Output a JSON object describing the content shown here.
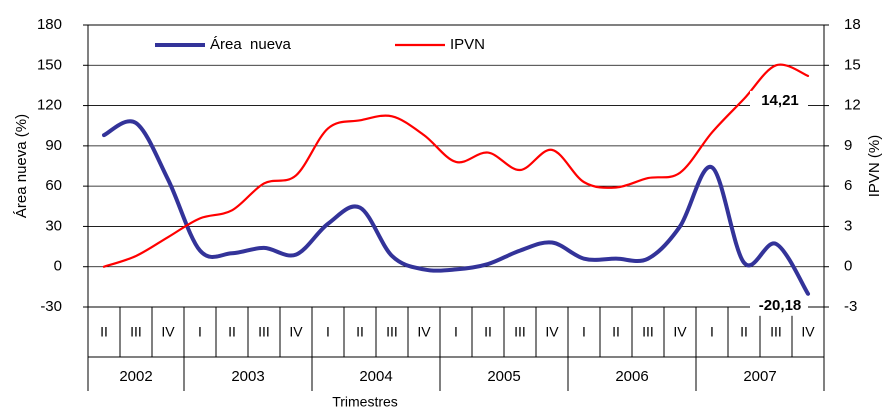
{
  "chart_data": {
    "type": "line",
    "categories": [
      "II",
      "III",
      "IV",
      "I",
      "II",
      "III",
      "IV",
      "I",
      "II",
      "III",
      "IV",
      "I",
      "II",
      "III",
      "IV",
      "I",
      "II",
      "III",
      "IV",
      "I",
      "II",
      "III",
      "IV"
    ],
    "groups": [
      {
        "label": "2002",
        "span": 3
      },
      {
        "label": "2003",
        "span": 4
      },
      {
        "label": "2004",
        "span": 4
      },
      {
        "label": "2005",
        "span": 4
      },
      {
        "label": "2006",
        "span": 4
      },
      {
        "label": "2007",
        "span": 4
      }
    ],
    "xlabel": "Trimestres",
    "ylabel": "Área nueva  (%)",
    "y2label": "IPVN  (%)",
    "ylim": [
      -30,
      180
    ],
    "yticks": [
      -30,
      0,
      30,
      60,
      90,
      120,
      150,
      180
    ],
    "y2lim": [
      -3,
      18
    ],
    "y2ticks": [
      -3,
      0,
      3,
      6,
      9,
      12,
      15,
      18
    ],
    "grid": true,
    "legend": "top",
    "series": [
      {
        "name": "Área  nueva",
        "color": "#333399",
        "axis": "y",
        "values": [
          98,
          107,
          65,
          12,
          10,
          14,
          9,
          32,
          44,
          8,
          -2,
          -2,
          2,
          12,
          18,
          6,
          6,
          6,
          30,
          74,
          3,
          17,
          -20.18
        ],
        "value_labels": [
          null,
          null,
          null,
          null,
          null,
          null,
          null,
          null,
          null,
          null,
          null,
          null,
          null,
          null,
          null,
          null,
          null,
          null,
          null,
          null,
          null,
          null,
          "-20,18"
        ]
      },
      {
        "name": "IPVN",
        "color": "#ff0000",
        "axis": "y2",
        "values": [
          0,
          0.8,
          2.2,
          3.6,
          4.2,
          6.2,
          6.8,
          10.3,
          10.9,
          11.2,
          9.8,
          7.8,
          8.5,
          7.2,
          8.7,
          6.3,
          5.9,
          6.6,
          7.0,
          10,
          12.5,
          15,
          14.21
        ],
        "value_labels": [
          null,
          null,
          null,
          null,
          null,
          null,
          null,
          null,
          null,
          null,
          null,
          null,
          null,
          null,
          null,
          null,
          null,
          null,
          null,
          null,
          null,
          null,
          "14,21"
        ]
      }
    ]
  }
}
